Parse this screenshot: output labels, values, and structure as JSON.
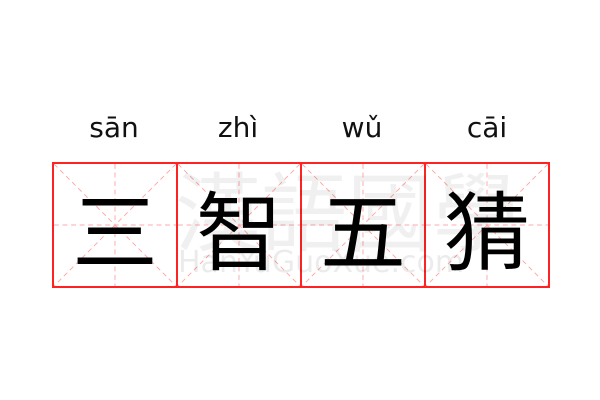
{
  "pinyin": [
    "sān",
    "zhì",
    "wǔ",
    "cāi"
  ],
  "characters": [
    "三",
    "智",
    "五",
    "猜"
  ],
  "watermark": {
    "text": "漢語國學",
    "url": "HanYuGuoXue.com"
  },
  "colors": {
    "grid_border": "#ff2222",
    "guide_lines": "#ffaaaa"
  }
}
